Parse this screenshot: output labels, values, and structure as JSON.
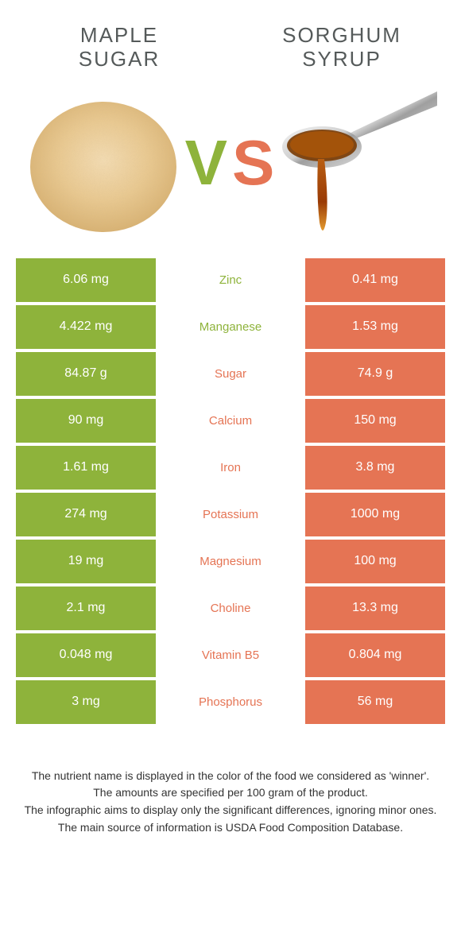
{
  "colors": {
    "green": "#8eb33b",
    "orange": "#e57454",
    "vs_v": "#8eb33b",
    "vs_s": "#e57454",
    "nutrient_default": "#888888"
  },
  "titles": {
    "left": "Maple sugar",
    "right": "Sorghum syrup"
  },
  "vs": {
    "v": "V",
    "s": "S"
  },
  "rows": [
    {
      "left": "6.06 mg",
      "nutrient": "Zinc",
      "right": "0.41 mg",
      "winner": "left"
    },
    {
      "left": "4.422 mg",
      "nutrient": "Manganese",
      "right": "1.53 mg",
      "winner": "left"
    },
    {
      "left": "84.87 g",
      "nutrient": "Sugar",
      "right": "74.9 g",
      "winner": "right"
    },
    {
      "left": "90 mg",
      "nutrient": "Calcium",
      "right": "150 mg",
      "winner": "right"
    },
    {
      "left": "1.61 mg",
      "nutrient": "Iron",
      "right": "3.8 mg",
      "winner": "right"
    },
    {
      "left": "274 mg",
      "nutrient": "Potassium",
      "right": "1000 mg",
      "winner": "right"
    },
    {
      "left": "19 mg",
      "nutrient": "Magnesium",
      "right": "100 mg",
      "winner": "right"
    },
    {
      "left": "2.1 mg",
      "nutrient": "Choline",
      "right": "13.3 mg",
      "winner": "right"
    },
    {
      "left": "0.048 mg",
      "nutrient": "Vitamin B5",
      "right": "0.804 mg",
      "winner": "right"
    },
    {
      "left": "3 mg",
      "nutrient": "Phosphorus",
      "right": "56 mg",
      "winner": "right"
    }
  ],
  "footer": {
    "l1": "The nutrient name is displayed in the color of the food we considered as 'winner'.",
    "l2": "The amounts are specified per 100 gram of the product.",
    "l3": "The infographic aims to display only the significant differences, ignoring minor ones.",
    "l4": "The main source of information is USDA Food Composition Database."
  }
}
